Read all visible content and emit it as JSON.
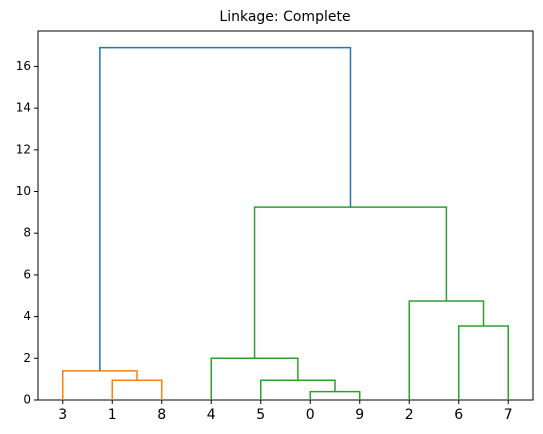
{
  "chart_data": {
    "type": "dendrogram",
    "title": "Linkage: Complete",
    "ylim": [
      0,
      17.7
    ],
    "yticks": [
      0,
      2,
      4,
      6,
      8,
      10,
      12,
      14,
      16
    ],
    "tree": {
      "height": 16.9,
      "color": "#1f77b4",
      "children": [
        {
          "height": 1.4,
          "color": "#ff7f0e",
          "children": [
            {
              "label": "3"
            },
            {
              "height": 0.95,
              "color": "#ff7f0e",
              "children": [
                {
                  "label": "1"
                },
                {
                  "label": "8"
                }
              ]
            }
          ]
        },
        {
          "height": 9.25,
          "color": "#2ca02c",
          "children": [
            {
              "height": 2.0,
              "color": "#2ca02c",
              "children": [
                {
                  "label": "4"
                },
                {
                  "height": 0.95,
                  "color": "#2ca02c",
                  "children": [
                    {
                      "label": "5"
                    },
                    {
                      "height": 0.4,
                      "color": "#2ca02c",
                      "children": [
                        {
                          "label": "0"
                        },
                        {
                          "label": "9"
                        }
                      ]
                    }
                  ]
                }
              ]
            },
            {
              "height": 4.75,
              "color": "#2ca02c",
              "children": [
                {
                  "label": "2"
                },
                {
                  "height": 3.55,
                  "color": "#2ca02c",
                  "children": [
                    {
                      "label": "6"
                    },
                    {
                      "label": "7"
                    }
                  ]
                }
              ]
            }
          ]
        }
      ]
    }
  }
}
